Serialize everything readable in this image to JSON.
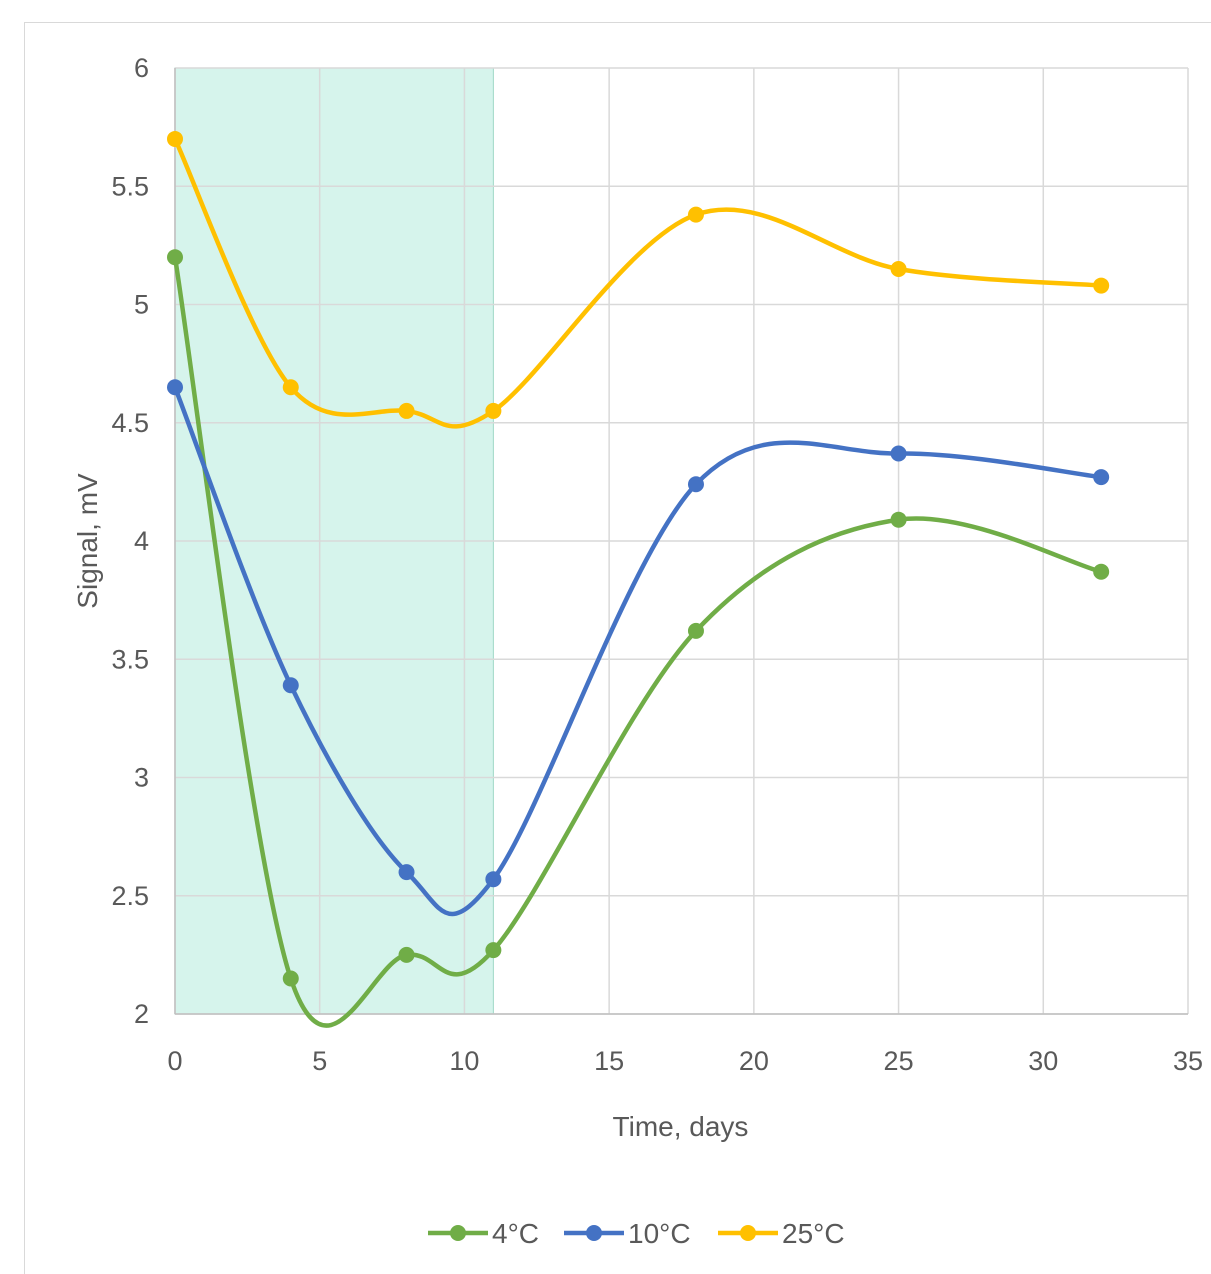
{
  "chart_data": {
    "type": "line",
    "smooth": true,
    "xlabel": "Time, days",
    "ylabel": "Signal, mV",
    "xlim": [
      0,
      35
    ],
    "ylim": [
      2,
      6
    ],
    "x_ticks": [
      0,
      5,
      10,
      15,
      20,
      25,
      30,
      35
    ],
    "y_ticks": [
      2,
      2.5,
      3,
      3.5,
      4,
      4.5,
      5,
      5.5,
      6
    ],
    "grid": true,
    "legend_position": "bottom",
    "shaded_region": {
      "x_from": 0,
      "x_to": 11,
      "color": "#d6f4ec"
    },
    "x": [
      0,
      4,
      8,
      11,
      18,
      25,
      32
    ],
    "series": [
      {
        "name": "4°C",
        "color": "#70ad47",
        "values": [
          5.2,
          2.15,
          2.25,
          2.27,
          3.62,
          4.09,
          3.87
        ]
      },
      {
        "name": "10°C",
        "color": "#4472c4",
        "values": [
          4.65,
          3.39,
          2.6,
          2.57,
          4.24,
          4.37,
          4.27
        ]
      },
      {
        "name": "25°C",
        "color": "#ffc000",
        "values": [
          5.7,
          4.65,
          4.55,
          4.55,
          5.38,
          5.15,
          5.08
        ]
      }
    ]
  }
}
